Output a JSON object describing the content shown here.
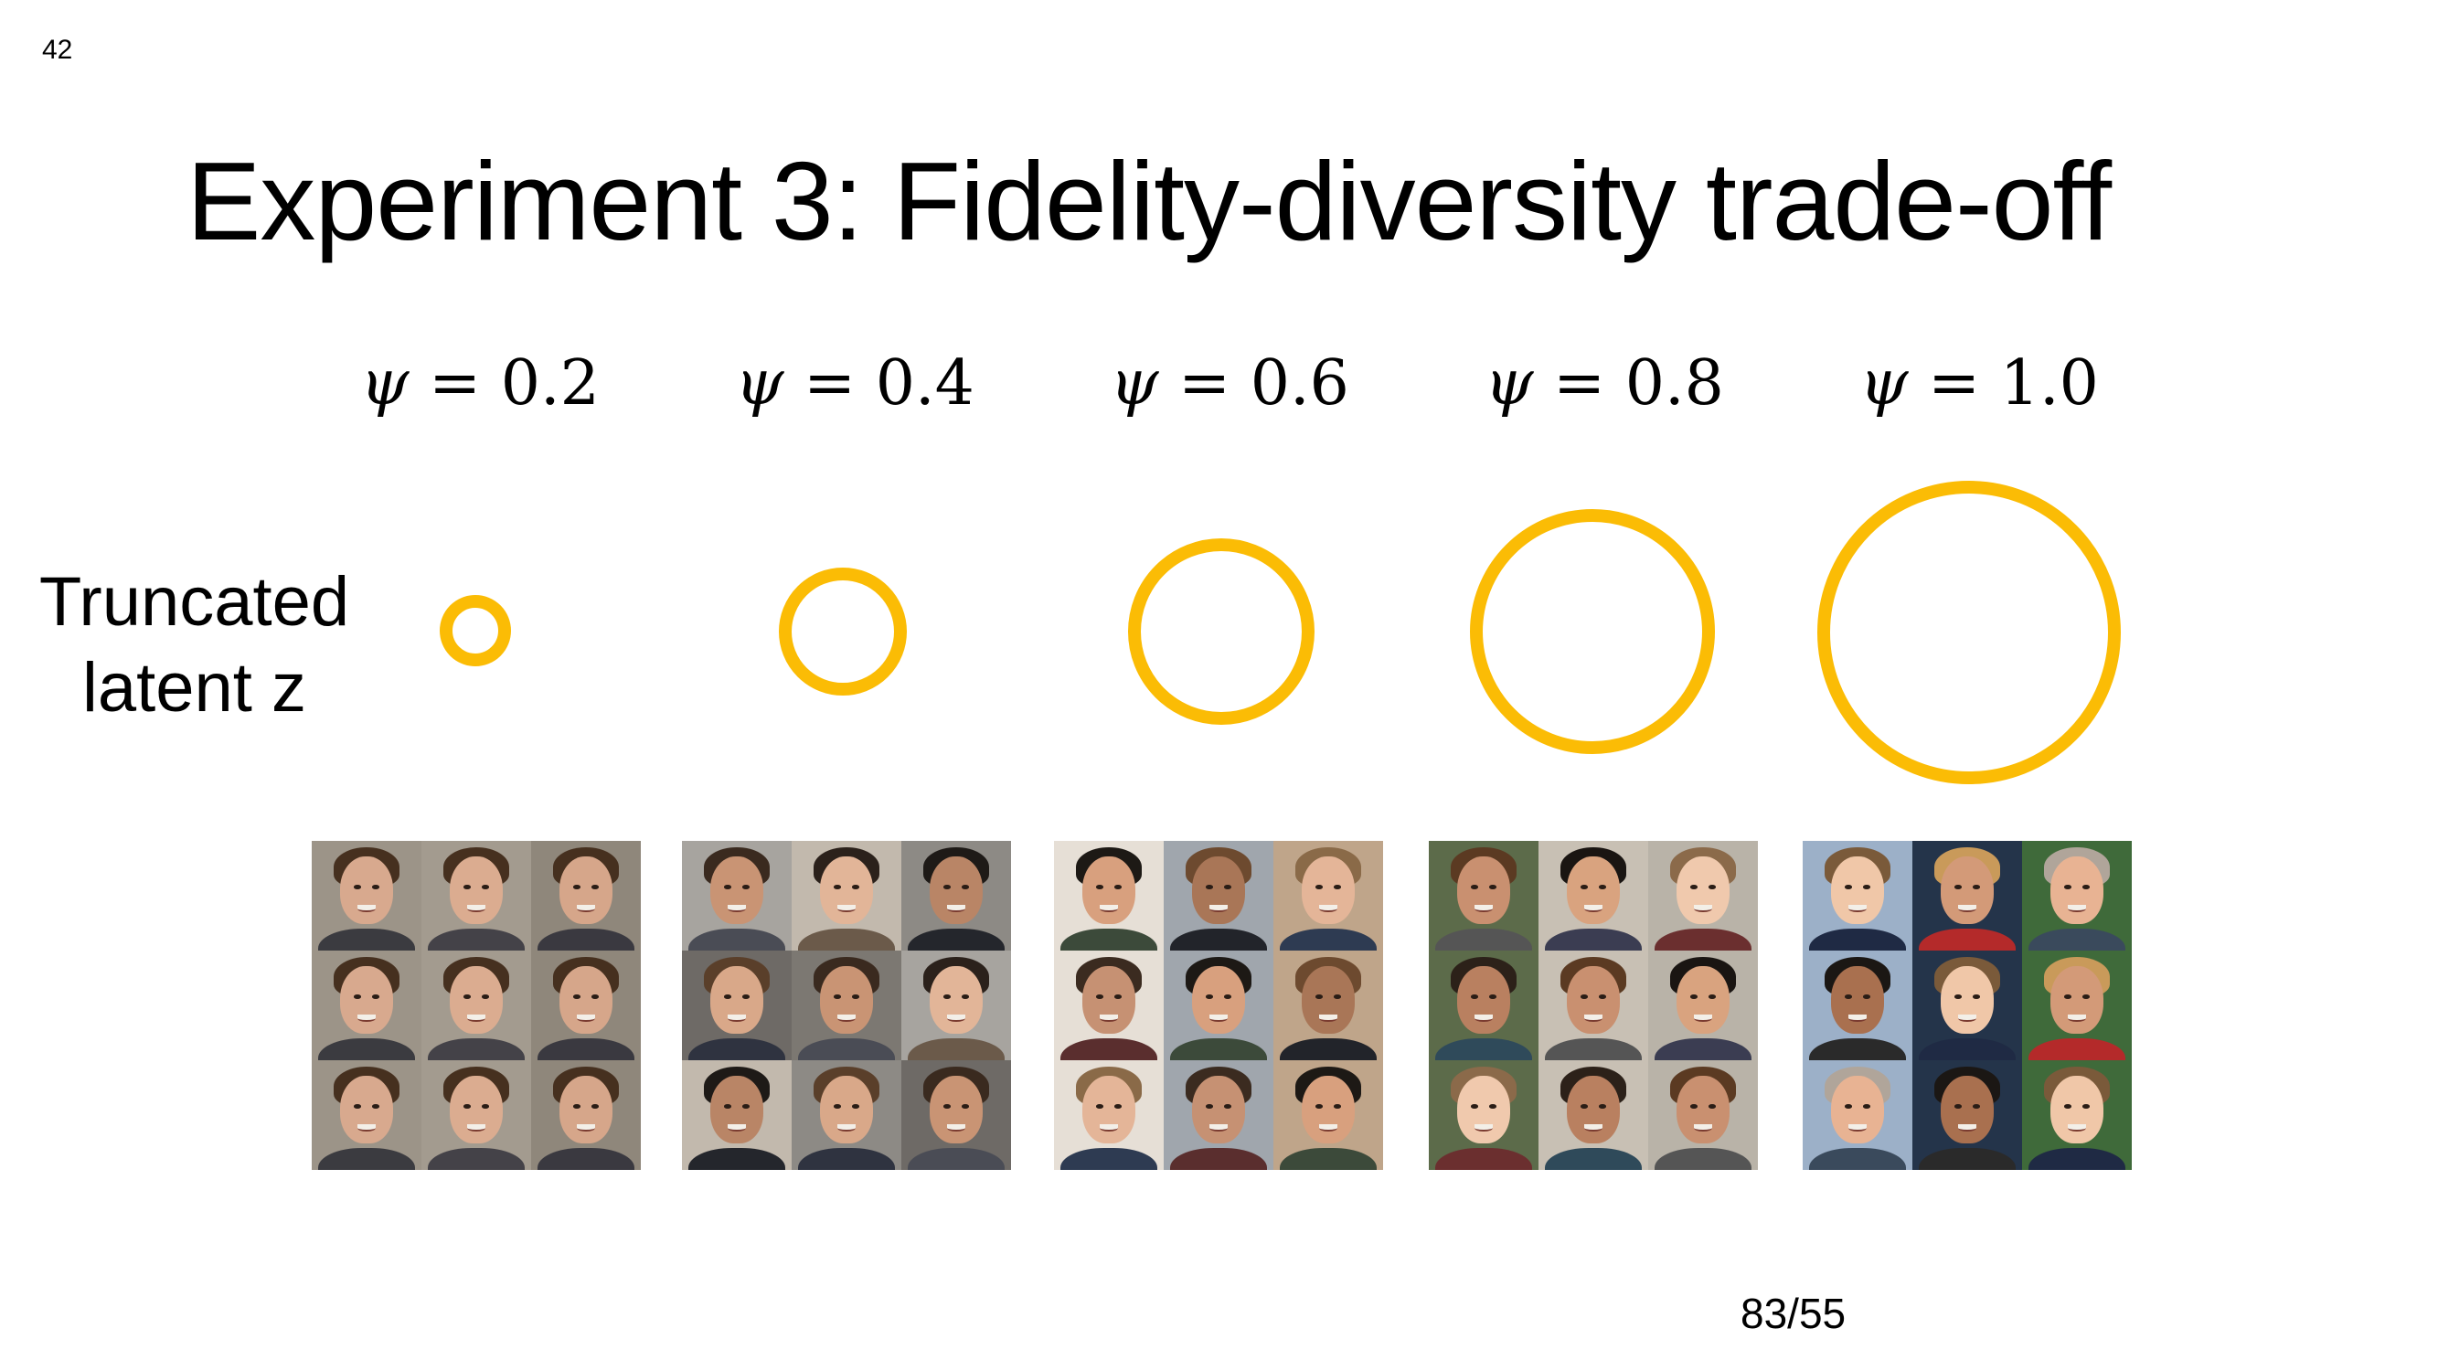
{
  "slide": {
    "number": "42",
    "title": "Experiment 3: Fidelity-diversity trade-off",
    "row_label_line1": "Truncated",
    "row_label_line2": "latent z",
    "counter": "83/55"
  },
  "psi_symbol": "ψ",
  "psi_values": [
    "= 0.2",
    "= 0.4",
    "= 0.6",
    "= 0.8",
    "= 1.0"
  ],
  "accent_color": "#FBBC05",
  "columns": [
    {
      "psi": 0.2,
      "sample_count": 9
    },
    {
      "psi": 0.4,
      "sample_count": 9
    },
    {
      "psi": 0.6,
      "sample_count": 9
    },
    {
      "psi": 0.8,
      "sample_count": 9
    },
    {
      "psi": 1.0,
      "sample_count": 9
    }
  ]
}
